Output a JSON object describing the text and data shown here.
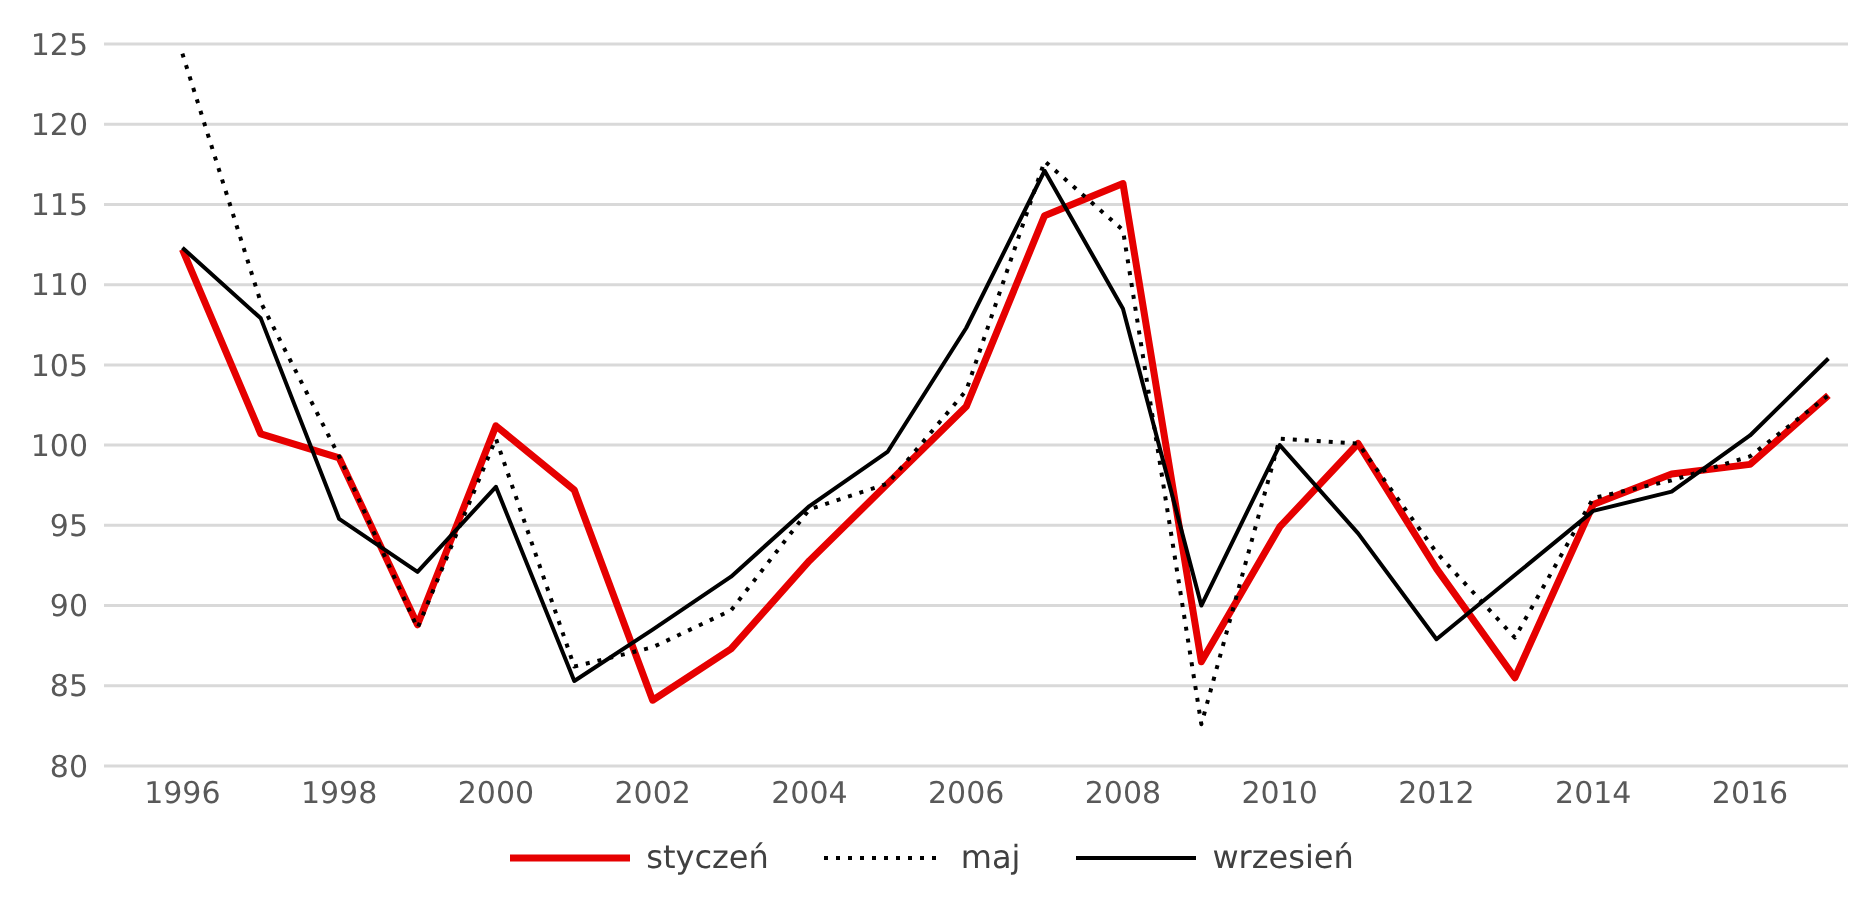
{
  "chart_data": {
    "type": "line",
    "x": [
      1996,
      1997,
      1998,
      1999,
      2000,
      2001,
      2002,
      2003,
      2004,
      2005,
      2006,
      2007,
      2008,
      2009,
      2010,
      2011,
      2012,
      2013,
      2014,
      2015,
      2016,
      2017
    ],
    "series": [
      {
        "name": "styczeń",
        "color": "#e60000",
        "line_style": "solid",
        "values": [
          112.2,
          100.7,
          99.2,
          88.8,
          101.2,
          97.2,
          84.1,
          87.3,
          92.8,
          97.6,
          102.4,
          114.3,
          116.3,
          86.5,
          94.9,
          100.1,
          92.3,
          85.5,
          96.3,
          98.2,
          98.8,
          103.1
        ]
      },
      {
        "name": "maj",
        "color": "#000000",
        "line_style": "dotted",
        "values": [
          124.4,
          108.9,
          99.3,
          88.6,
          100.4,
          86.2,
          87.4,
          89.7,
          96.0,
          97.6,
          103.4,
          117.7,
          113.4,
          82.6,
          100.4,
          100.1,
          93.3,
          88.0,
          96.7,
          97.8,
          99.3,
          103.1
        ]
      },
      {
        "name": "wrzesień",
        "color": "#000000",
        "line_style": "solid",
        "values": [
          112.3,
          107.9,
          95.4,
          92.1,
          97.4,
          85.3,
          88.5,
          91.8,
          96.2,
          99.6,
          107.3,
          117.1,
          108.5,
          90.0,
          100.0,
          94.5,
          87.9,
          91.9,
          95.9,
          97.1,
          100.6,
          105.4
        ]
      }
    ],
    "xlim": [
      1995,
      2017.25
    ],
    "xticks": [
      1996,
      1998,
      2000,
      2002,
      2004,
      2006,
      2008,
      2010,
      2012,
      2014,
      2016
    ],
    "ylim": [
      80,
      125
    ],
    "yticks": [
      80,
      85,
      90,
      95,
      100,
      105,
      110,
      115,
      120,
      125
    ],
    "grid": "y",
    "legend": "bottom",
    "marker": "none"
  }
}
